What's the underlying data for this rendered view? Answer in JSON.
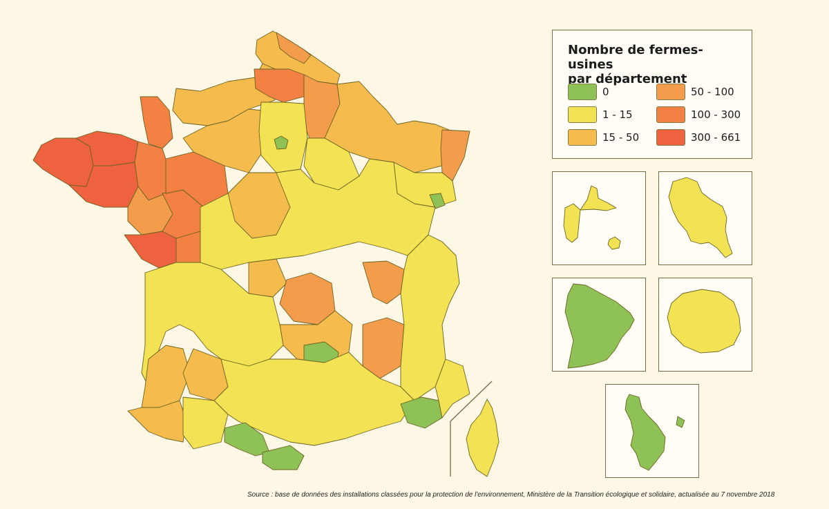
{
  "legend": {
    "title_line1": "Nombre de fermes-usines",
    "title_line2": "par département",
    "classes": [
      {
        "label": "0",
        "color": "#8fc256"
      },
      {
        "label": "1 - 15",
        "color": "#f3e253"
      },
      {
        "label": "15 - 50",
        "color": "#f5bb4d"
      },
      {
        "label": "50 - 100",
        "color": "#f39d4c"
      },
      {
        "label": "100 - 300",
        "color": "#f28143"
      },
      {
        "label": "300 - 661",
        "color": "#ef6240"
      }
    ]
  },
  "insets": [
    {
      "territory": "Guadeloupe",
      "class": "1 - 15"
    },
    {
      "territory": "Martinique",
      "class": "1 - 15"
    },
    {
      "territory": "Guyane",
      "class": "0"
    },
    {
      "territory": "La Réunion",
      "class": "1 - 15"
    },
    {
      "territory": "Mayotte",
      "class": "0"
    }
  ],
  "source": "Source : base de données des installations classées pour la protection de l'environnement, Ministère de la Transition écologique et solidaire, actualisée au 7 novembre 2018",
  "colors": {
    "background": "#fdf7e6",
    "border": "#7a6a44",
    "stroke": "#6b6320"
  }
}
